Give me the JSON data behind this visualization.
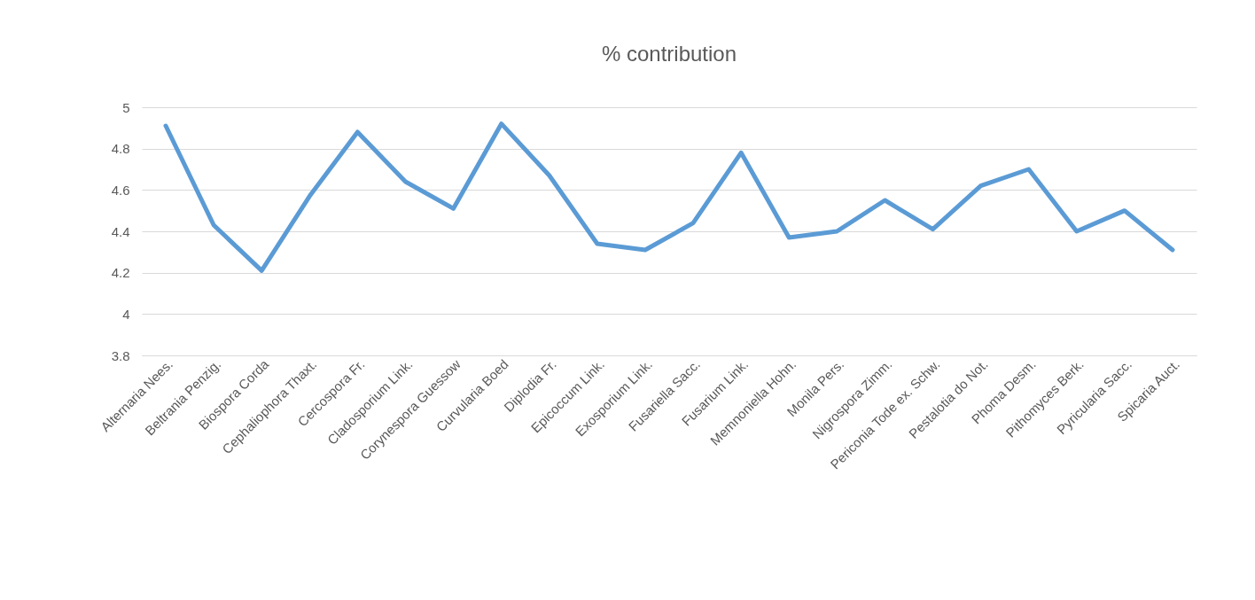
{
  "chart_data": {
    "type": "line",
    "title": "% contribution",
    "categories": [
      "Alternaria Nees.",
      "Beltrania Penzig.",
      "Biospora Corda",
      "Cephaliophora Thaxt.",
      "Cercospora Fr.",
      "Cladosporium Link.",
      "Corynespora Guessow",
      "Curvularia Boed",
      "Diplodia Fr.",
      "Epicoccum Link.",
      "Exosporium Link.",
      "Fusariella Sacc.",
      "Fusarium Link.",
      "Memnoniella Hohn.",
      "Monila Pers.",
      "Nigrospora Zimm.",
      "Periconia Tode ex. Schw.",
      "Pestalotia do Not.",
      "Phoma Desm.",
      "Pithomyces Berk.",
      "Pyricularia Sacc.",
      "Spicaria Auct."
    ],
    "series": [
      {
        "color": "#5b9bd5",
        "values": [
          4.91,
          4.43,
          4.21,
          4.57,
          4.88,
          4.64,
          4.51,
          4.92,
          4.67,
          4.34,
          4.31,
          4.44,
          4.78,
          4.37,
          4.4,
          4.55,
          4.41,
          4.62,
          4.7,
          4.4,
          4.5,
          4.31
        ]
      }
    ],
    "ylim": [
      3.8,
      5
    ],
    "yticks": [
      3.8,
      4,
      4.2,
      4.4,
      4.6,
      4.8,
      5
    ],
    "grid": "y",
    "legend": false,
    "marker": "none",
    "line_style": "solid"
  }
}
